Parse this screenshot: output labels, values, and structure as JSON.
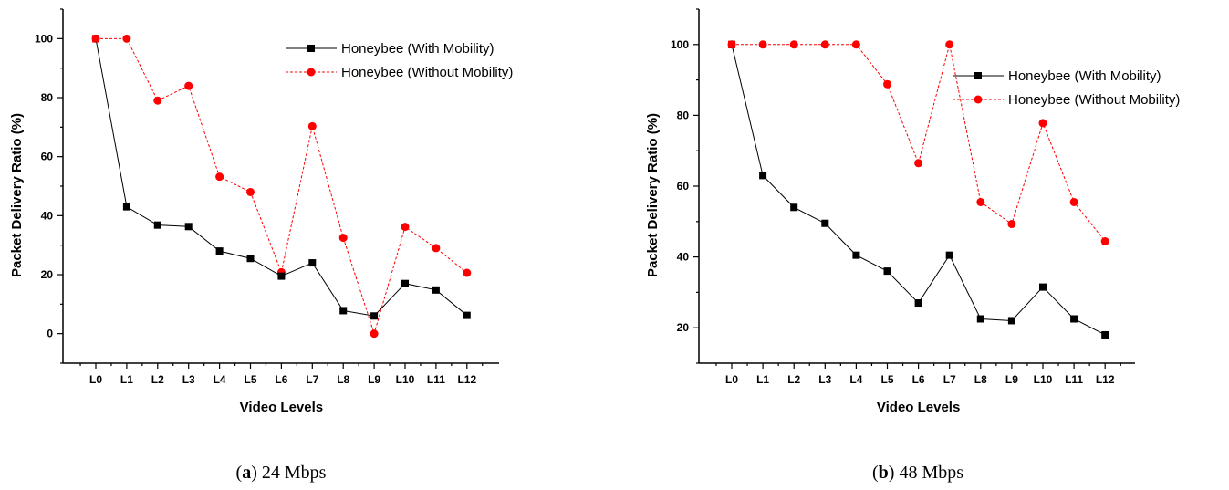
{
  "chart_data": [
    {
      "type": "line",
      "caption_letter": "a",
      "caption_text": " 24 Mbps",
      "xlabel": "Video Levels",
      "ylabel": "Packet Delivery Ratio (%)",
      "categories": [
        "L0",
        "L1",
        "L2",
        "L3",
        "L4",
        "L5",
        "L6",
        "L7",
        "L8",
        "L9",
        "L10",
        "L11",
        "L12"
      ],
      "ylim": [
        -10,
        110
      ],
      "yticks": [
        0,
        20,
        40,
        60,
        80,
        100
      ],
      "legend_position": "top-right",
      "series": [
        {
          "name": "Honeybee (With Mobility)",
          "marker": "square",
          "color": "#000000",
          "line": "solid",
          "values": [
            100,
            43,
            36.8,
            36.3,
            28,
            25.5,
            19.5,
            24,
            7.8,
            6,
            17,
            14.8,
            6.2
          ]
        },
        {
          "name": "Honeybee (Without Mobility)",
          "marker": "circle",
          "color": "#ff0000",
          "line": "dashed",
          "values": [
            100,
            100,
            79,
            84,
            53.2,
            48,
            20.8,
            70.3,
            32.5,
            0,
            36.2,
            29,
            20.6
          ]
        }
      ]
    },
    {
      "type": "line",
      "caption_letter": "b",
      "caption_text": " 48 Mbps",
      "xlabel": "Video Levels",
      "ylabel": "Packet Delivery Ratio (%)",
      "categories": [
        "L0",
        "L1",
        "L2",
        "L3",
        "L4",
        "L5",
        "L6",
        "L7",
        "L8",
        "L9",
        "L10",
        "L11",
        "L12"
      ],
      "ylim": [
        10,
        110
      ],
      "yticks": [
        20,
        40,
        60,
        80,
        100
      ],
      "legend_position": "top-right",
      "series": [
        {
          "name": "Honeybee (With Mobility)",
          "marker": "square",
          "color": "#000000",
          "line": "solid",
          "values": [
            100,
            63,
            54,
            49.5,
            40.5,
            36,
            27,
            40.5,
            22.5,
            22,
            31.5,
            22.5,
            18
          ]
        },
        {
          "name": "Honeybee (Without Mobility)",
          "marker": "circle",
          "color": "#ff0000",
          "line": "dashed",
          "values": [
            100,
            100,
            100,
            100,
            100,
            88.8,
            66.5,
            100,
            55.5,
            49.3,
            77.8,
            55.5,
            44.4
          ]
        }
      ]
    }
  ]
}
